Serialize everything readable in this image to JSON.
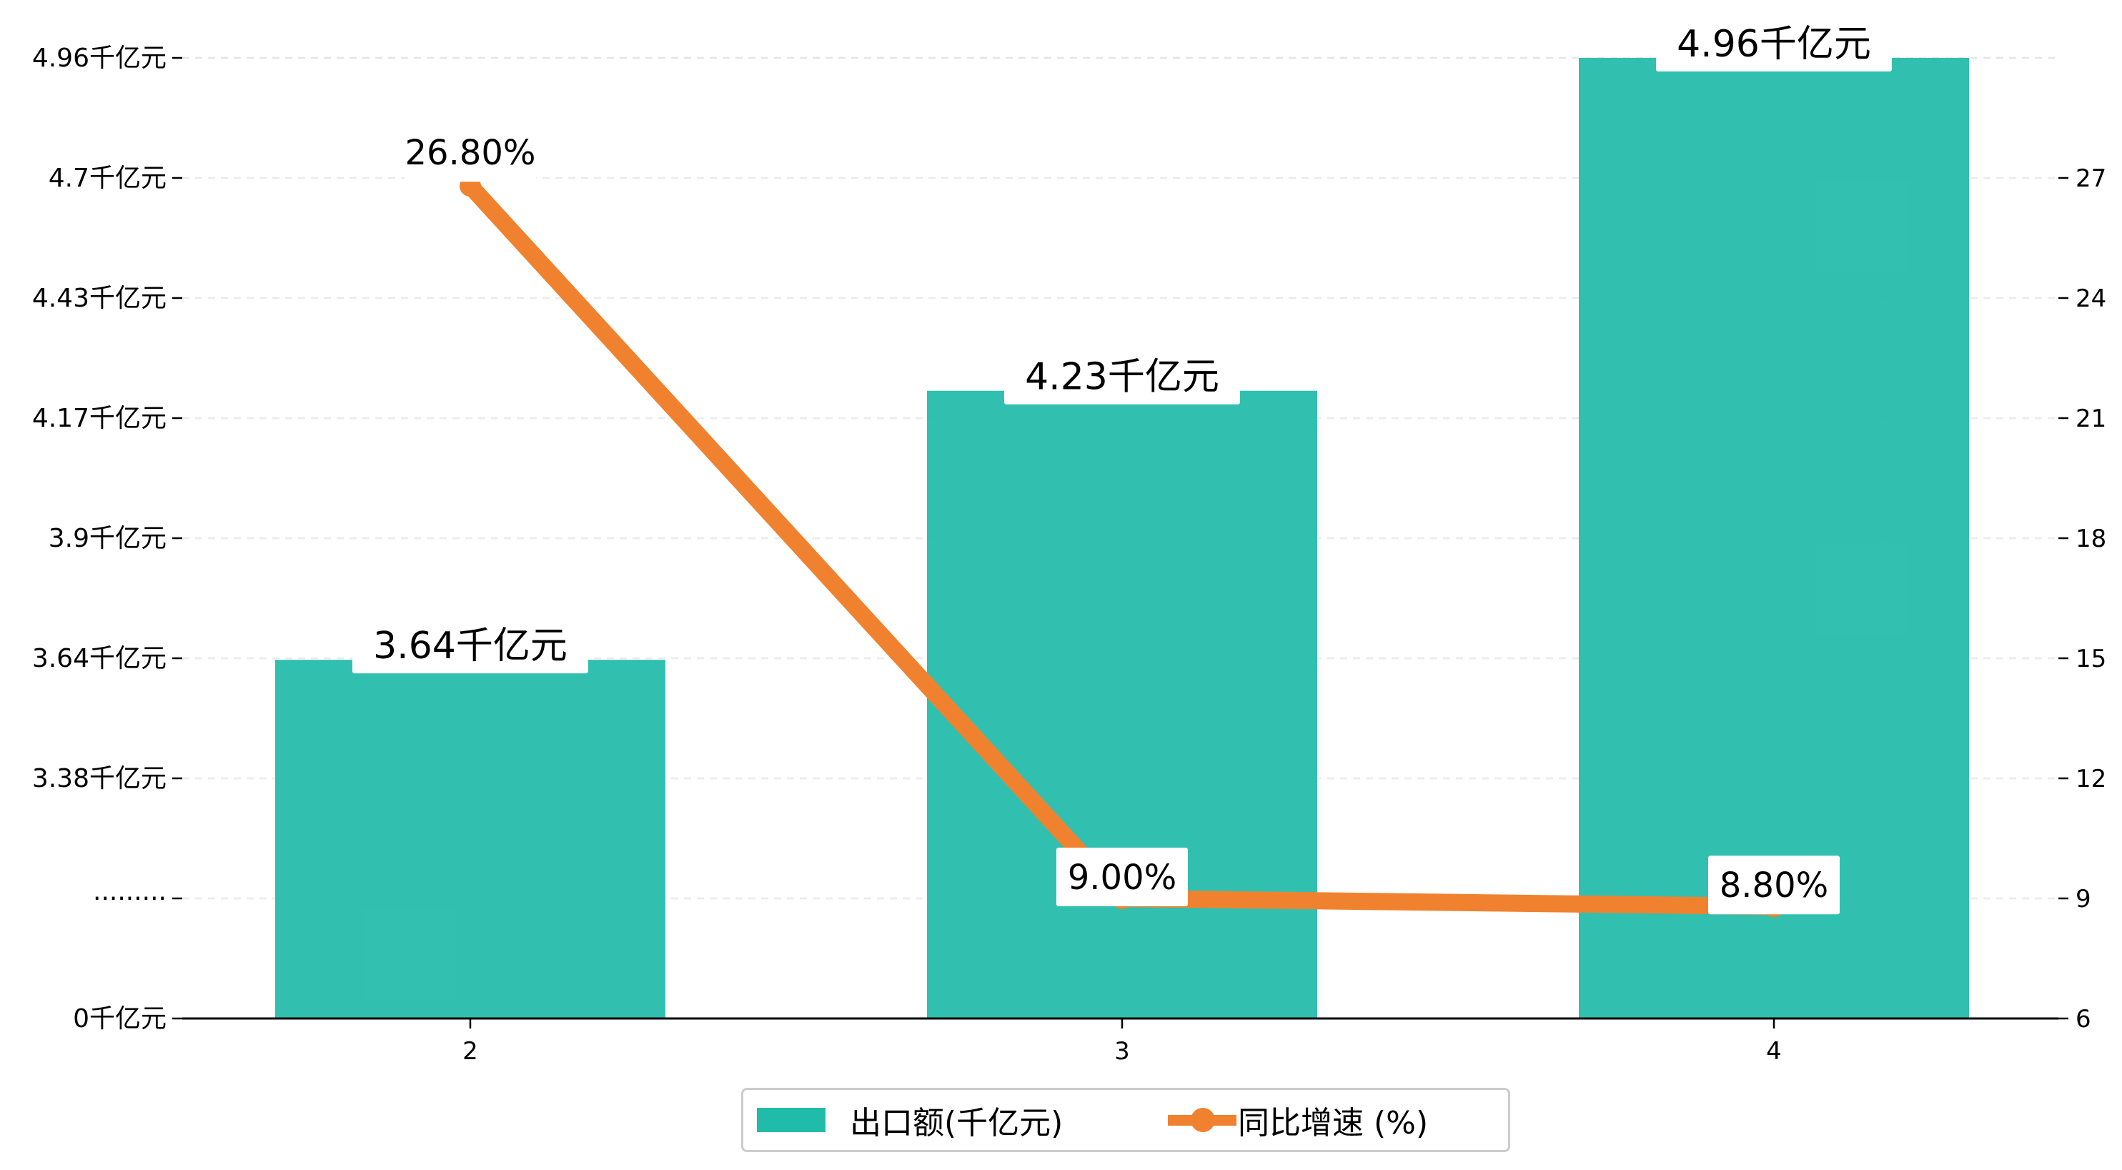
{
  "chart_data": {
    "type": "bar",
    "title": "",
    "xlabel": "",
    "ylabel": "",
    "categories": [
      "2",
      "3",
      "4"
    ],
    "series": [
      {
        "name": "出口额(千亿元)",
        "type": "bar",
        "axis": "left",
        "values": [
          3.64,
          4.23,
          4.96
        ],
        "data_labels": [
          "3.64千亿元",
          "4.23千亿元",
          "4.96千亿元"
        ],
        "color": "#20bba9"
      },
      {
        "name": "同比增速 (%)",
        "type": "line",
        "axis": "right",
        "values": [
          26.8,
          9.0,
          8.8
        ],
        "data_labels": [
          "26.80%",
          "9.00%",
          "8.80%"
        ],
        "color": "#f0822f"
      }
    ],
    "left_axis": {
      "broken": true,
      "tick_labels": [
        "0千亿元",
        "·········",
        "3.38千亿元",
        "3.64千亿元",
        "3.9千亿元",
        "4.17千亿元",
        "4.43千亿元",
        "4.7千亿元",
        "4.96千亿元"
      ],
      "ticks_numeric": [
        null,
        null,
        3.38,
        3.64,
        3.9,
        4.17,
        4.43,
        4.7,
        4.96
      ]
    },
    "right_axis": {
      "ylim": [
        6,
        30
      ],
      "ticks": [
        6,
        9,
        12,
        15,
        18,
        21,
        24,
        27
      ]
    },
    "grid": true,
    "legend_position": "bottom-center"
  }
}
